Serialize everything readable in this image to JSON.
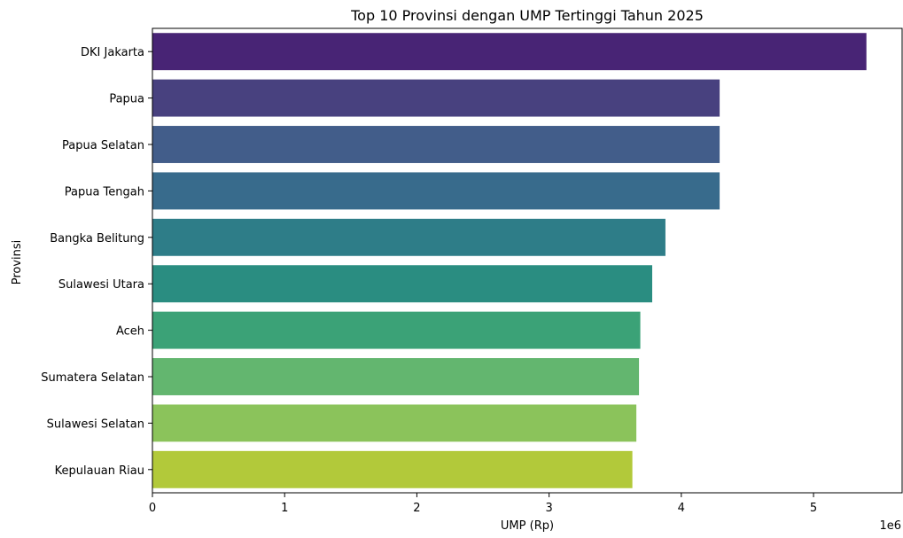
{
  "chart_data": {
    "type": "bar",
    "orientation": "horizontal",
    "title": "Top 10 Provinsi dengan UMP Tertinggi Tahun 2025",
    "xlabel": "UMP (Rp)",
    "ylabel": "Provinsi",
    "x_scale_label": "1e6",
    "xlim": [
      0,
      5.67
    ],
    "x_scale_factor": 1000000,
    "x_ticks": [
      0,
      1,
      2,
      3,
      4,
      5
    ],
    "grid": false,
    "legend": "none",
    "palette": "viridis",
    "categories": [
      "DKI Jakarta",
      "Papua",
      "Papua Selatan",
      "Papua Tengah",
      "Bangka Belitung",
      "Sulawesi Utara",
      "Aceh",
      "Sumatera Selatan",
      "Sulawesi Selatan",
      "Kepulauan Riau"
    ],
    "values": [
      5.4,
      4.29,
      4.29,
      4.29,
      3.88,
      3.78,
      3.69,
      3.68,
      3.66,
      3.63
    ],
    "colors": [
      "#482475",
      "#48417f",
      "#425d8a",
      "#386b8c",
      "#2e7d88",
      "#2a8d81",
      "#3ba277",
      "#63b66f",
      "#8bc35b",
      "#b2c93a"
    ]
  }
}
